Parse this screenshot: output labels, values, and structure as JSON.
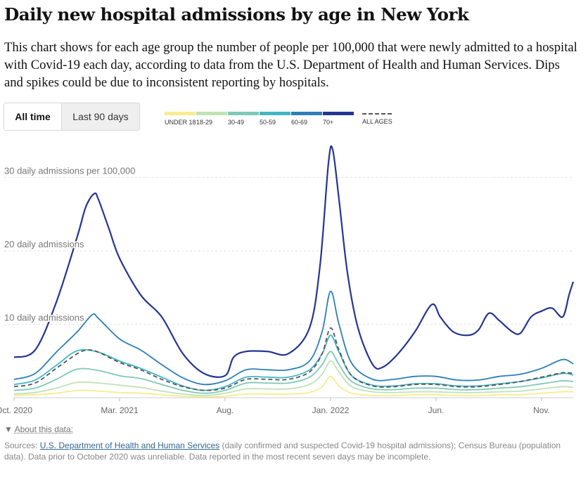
{
  "title": "Daily new hospital admissions by age in New York",
  "description": "This chart shows for each age group the number of people per 100,000 that were newly admitted to a hospital with Covid-19 each day, according to data from the U.S. Department of Health and Human Services. Dips and spikes could be due to inconsistent reporting by hospitals.",
  "toggle": {
    "all_time": "All time",
    "last_90": "Last 90 days",
    "selected": "All time"
  },
  "about": {
    "arrow": "▼",
    "label": "About this data:"
  },
  "sources": {
    "prefix": "Sources: ",
    "link": "U.S. Department of Health and Human Services",
    "rest": " (daily confirmed and suspected Covid-19 hospital admissions); Census Bureau (population data). Data prior to October 2020 was unreliable. Data reported in the most recent seven days may be incomplete."
  },
  "chart_data": {
    "type": "line",
    "title": "Daily new hospital admissions by age in New York",
    "ylabel": "daily admissions per 100,000",
    "ylim": [
      0,
      36
    ],
    "yticks": [
      {
        "value": 10,
        "label": "10 daily admissions"
      },
      {
        "value": 20,
        "label": "20 daily admissions"
      },
      {
        "value": 30,
        "label": "30 daily admissions per 100,000"
      }
    ],
    "xlim": [
      0,
      26.5
    ],
    "xticks": [
      {
        "value": 0,
        "label": "Oct. 2020"
      },
      {
        "value": 5,
        "label": "Mar. 2021"
      },
      {
        "value": 10,
        "label": "Aug."
      },
      {
        "value": 15,
        "label": "Jan. 2022"
      },
      {
        "value": 20,
        "label": "Jun."
      },
      {
        "value": 25,
        "label": "Nov."
      }
    ],
    "x_unit": "months since Oct. 2020",
    "grid": true,
    "legend_position": "top",
    "series": [
      {
        "name": "UNDER 18",
        "color": "#f7ec8f",
        "points": [
          [
            0,
            0.3
          ],
          [
            1,
            0.4
          ],
          [
            2,
            0.6
          ],
          [
            3,
            1.0
          ],
          [
            4,
            0.9
          ],
          [
            5,
            0.7
          ],
          [
            6,
            0.6
          ],
          [
            7,
            0.4
          ],
          [
            8,
            0.2
          ],
          [
            9,
            0.1
          ],
          [
            10,
            0.2
          ],
          [
            11,
            0.5
          ],
          [
            12,
            0.5
          ],
          [
            13,
            0.5
          ],
          [
            14,
            0.7
          ],
          [
            14.6,
            1.5
          ],
          [
            15,
            2.9
          ],
          [
            15.4,
            1.6
          ],
          [
            16,
            0.6
          ],
          [
            17,
            0.3
          ],
          [
            18,
            0.3
          ],
          [
            19,
            0.4
          ],
          [
            20,
            0.4
          ],
          [
            21,
            0.3
          ],
          [
            22,
            0.3
          ],
          [
            23,
            0.4
          ],
          [
            24,
            0.4
          ],
          [
            25,
            0.6
          ],
          [
            26,
            0.8
          ],
          [
            26.5,
            0.8
          ]
        ]
      },
      {
        "name": "18-29",
        "color": "#bfe3b4",
        "points": [
          [
            0,
            0.5
          ],
          [
            1,
            0.7
          ],
          [
            2,
            1.3
          ],
          [
            3,
            2.1
          ],
          [
            4,
            2.0
          ],
          [
            5,
            1.7
          ],
          [
            6,
            1.4
          ],
          [
            7,
            0.9
          ],
          [
            8,
            0.5
          ],
          [
            9,
            0.3
          ],
          [
            10,
            0.6
          ],
          [
            11,
            1.2
          ],
          [
            12,
            1.2
          ],
          [
            13,
            1.2
          ],
          [
            14,
            1.8
          ],
          [
            14.6,
            3.2
          ],
          [
            15,
            5.0
          ],
          [
            15.4,
            3.5
          ],
          [
            16,
            1.5
          ],
          [
            17,
            0.8
          ],
          [
            18,
            0.7
          ],
          [
            19,
            0.8
          ],
          [
            20,
            0.8
          ],
          [
            21,
            0.7
          ],
          [
            22,
            0.7
          ],
          [
            23,
            0.8
          ],
          [
            24,
            0.9
          ],
          [
            25,
            1.2
          ],
          [
            26,
            1.5
          ],
          [
            26.5,
            1.4
          ]
        ]
      },
      {
        "name": "30-49",
        "color": "#7fc9b6",
        "points": [
          [
            0,
            1.0
          ],
          [
            1,
            1.3
          ],
          [
            2,
            2.5
          ],
          [
            3,
            3.9
          ],
          [
            4,
            3.7
          ],
          [
            5,
            3.0
          ],
          [
            6,
            2.6
          ],
          [
            7,
            1.8
          ],
          [
            8,
            1.0
          ],
          [
            9,
            0.6
          ],
          [
            10,
            1.0
          ],
          [
            11,
            2.0
          ],
          [
            12,
            2.0
          ],
          [
            13,
            2.0
          ],
          [
            14,
            2.8
          ],
          [
            14.6,
            4.5
          ],
          [
            15,
            6.3
          ],
          [
            15.4,
            4.5
          ],
          [
            16,
            2.2
          ],
          [
            17,
            1.2
          ],
          [
            18,
            1.1
          ],
          [
            19,
            1.3
          ],
          [
            20,
            1.3
          ],
          [
            21,
            1.1
          ],
          [
            22,
            1.1
          ],
          [
            23,
            1.3
          ],
          [
            24,
            1.5
          ],
          [
            25,
            1.9
          ],
          [
            26,
            2.3
          ],
          [
            26.5,
            2.2
          ]
        ]
      },
      {
        "name": "50-59",
        "color": "#41b6c4",
        "points": [
          [
            0,
            1.8
          ],
          [
            1,
            2.4
          ],
          [
            2,
            4.4
          ],
          [
            3,
            6.4
          ],
          [
            4,
            6.2
          ],
          [
            5,
            5.0
          ],
          [
            6,
            4.0
          ],
          [
            7,
            2.8
          ],
          [
            8,
            1.6
          ],
          [
            9,
            1.0
          ],
          [
            10,
            1.5
          ],
          [
            11,
            2.8
          ],
          [
            12,
            2.8
          ],
          [
            13,
            2.8
          ],
          [
            14,
            3.8
          ],
          [
            14.6,
            6.0
          ],
          [
            15,
            8.5
          ],
          [
            15.4,
            6.2
          ],
          [
            16,
            3.0
          ],
          [
            17,
            1.7
          ],
          [
            18,
            1.6
          ],
          [
            19,
            1.9
          ],
          [
            20,
            1.9
          ],
          [
            21,
            1.6
          ],
          [
            22,
            1.6
          ],
          [
            23,
            1.9
          ],
          [
            24,
            2.2
          ],
          [
            25,
            2.7
          ],
          [
            26,
            3.3
          ],
          [
            26.5,
            3.1
          ]
        ]
      },
      {
        "name": "60-69",
        "color": "#2c7fb8",
        "points": [
          [
            0,
            2.5
          ],
          [
            1,
            3.3
          ],
          [
            2,
            6.2
          ],
          [
            3,
            9.0
          ],
          [
            3.7,
            11.3
          ],
          [
            4,
            10.8
          ],
          [
            5,
            8.0
          ],
          [
            6,
            6.5
          ],
          [
            7,
            4.5
          ],
          [
            8,
            2.7
          ],
          [
            9,
            1.8
          ],
          [
            10,
            2.3
          ],
          [
            11,
            3.8
          ],
          [
            12,
            3.8
          ],
          [
            13,
            3.8
          ],
          [
            14,
            5.0
          ],
          [
            14.6,
            9.0
          ],
          [
            15,
            14.5
          ],
          [
            15.4,
            10.0
          ],
          [
            16,
            4.7
          ],
          [
            17,
            2.5
          ],
          [
            18,
            2.5
          ],
          [
            19,
            2.9
          ],
          [
            20,
            2.9
          ],
          [
            21,
            2.4
          ],
          [
            22,
            2.4
          ],
          [
            23,
            2.9
          ],
          [
            24,
            3.2
          ],
          [
            25,
            4.0
          ],
          [
            26,
            5.2
          ],
          [
            26.5,
            4.6
          ]
        ]
      },
      {
        "name": "70+",
        "color": "#253494",
        "points": [
          [
            0,
            5.5
          ],
          [
            1,
            6.5
          ],
          [
            2,
            13.0
          ],
          [
            3,
            22.0
          ],
          [
            3.4,
            26.0
          ],
          [
            3.8,
            27.8
          ],
          [
            4,
            27.0
          ],
          [
            4.5,
            23.0
          ],
          [
            5,
            19.0
          ],
          [
            6,
            14.0
          ],
          [
            7,
            11.0
          ],
          [
            8,
            6.0
          ],
          [
            9,
            3.3
          ],
          [
            10,
            3.0
          ],
          [
            10.4,
            5.5
          ],
          [
            11,
            6.3
          ],
          [
            12,
            6.3
          ],
          [
            13,
            6.0
          ],
          [
            14,
            9.5
          ],
          [
            14.5,
            18.0
          ],
          [
            14.9,
            32.0
          ],
          [
            15.1,
            33.8
          ],
          [
            15.4,
            27.0
          ],
          [
            15.8,
            17.0
          ],
          [
            16.3,
            9.5
          ],
          [
            17,
            4.5
          ],
          [
            17.5,
            4.2
          ],
          [
            18.2,
            6.0
          ],
          [
            19,
            9.0
          ],
          [
            19.8,
            12.7
          ],
          [
            20.2,
            11.0
          ],
          [
            20.8,
            9.0
          ],
          [
            21.5,
            8.5
          ],
          [
            22,
            9.2
          ],
          [
            22.5,
            11.5
          ],
          [
            23,
            10.5
          ],
          [
            23.6,
            9.0
          ],
          [
            24,
            8.8
          ],
          [
            24.5,
            11.0
          ],
          [
            25,
            11.8
          ],
          [
            25.5,
            12.2
          ],
          [
            26,
            11.0
          ],
          [
            26.3,
            14.0
          ],
          [
            26.5,
            15.8
          ]
        ]
      },
      {
        "name": "ALL AGES",
        "color": "#555555",
        "dashed": true,
        "points": [
          [
            0,
            1.5
          ],
          [
            1,
            2.0
          ],
          [
            2,
            4.0
          ],
          [
            3,
            6.0
          ],
          [
            3.5,
            6.5
          ],
          [
            4,
            6.2
          ],
          [
            5,
            4.8
          ],
          [
            6,
            3.8
          ],
          [
            7,
            2.5
          ],
          [
            8,
            1.5
          ],
          [
            9,
            1.0
          ],
          [
            10,
            1.3
          ],
          [
            11,
            2.5
          ],
          [
            12,
            2.5
          ],
          [
            13,
            2.5
          ],
          [
            14,
            3.5
          ],
          [
            14.6,
            6.0
          ],
          [
            15,
            9.5
          ],
          [
            15.4,
            6.5
          ],
          [
            16,
            3.0
          ],
          [
            17,
            1.6
          ],
          [
            18,
            1.5
          ],
          [
            19,
            1.8
          ],
          [
            20,
            1.8
          ],
          [
            21,
            1.5
          ],
          [
            22,
            1.5
          ],
          [
            23,
            1.8
          ],
          [
            24,
            2.2
          ],
          [
            25,
            2.8
          ],
          [
            26,
            3.4
          ],
          [
            26.5,
            3.3
          ]
        ]
      }
    ]
  }
}
